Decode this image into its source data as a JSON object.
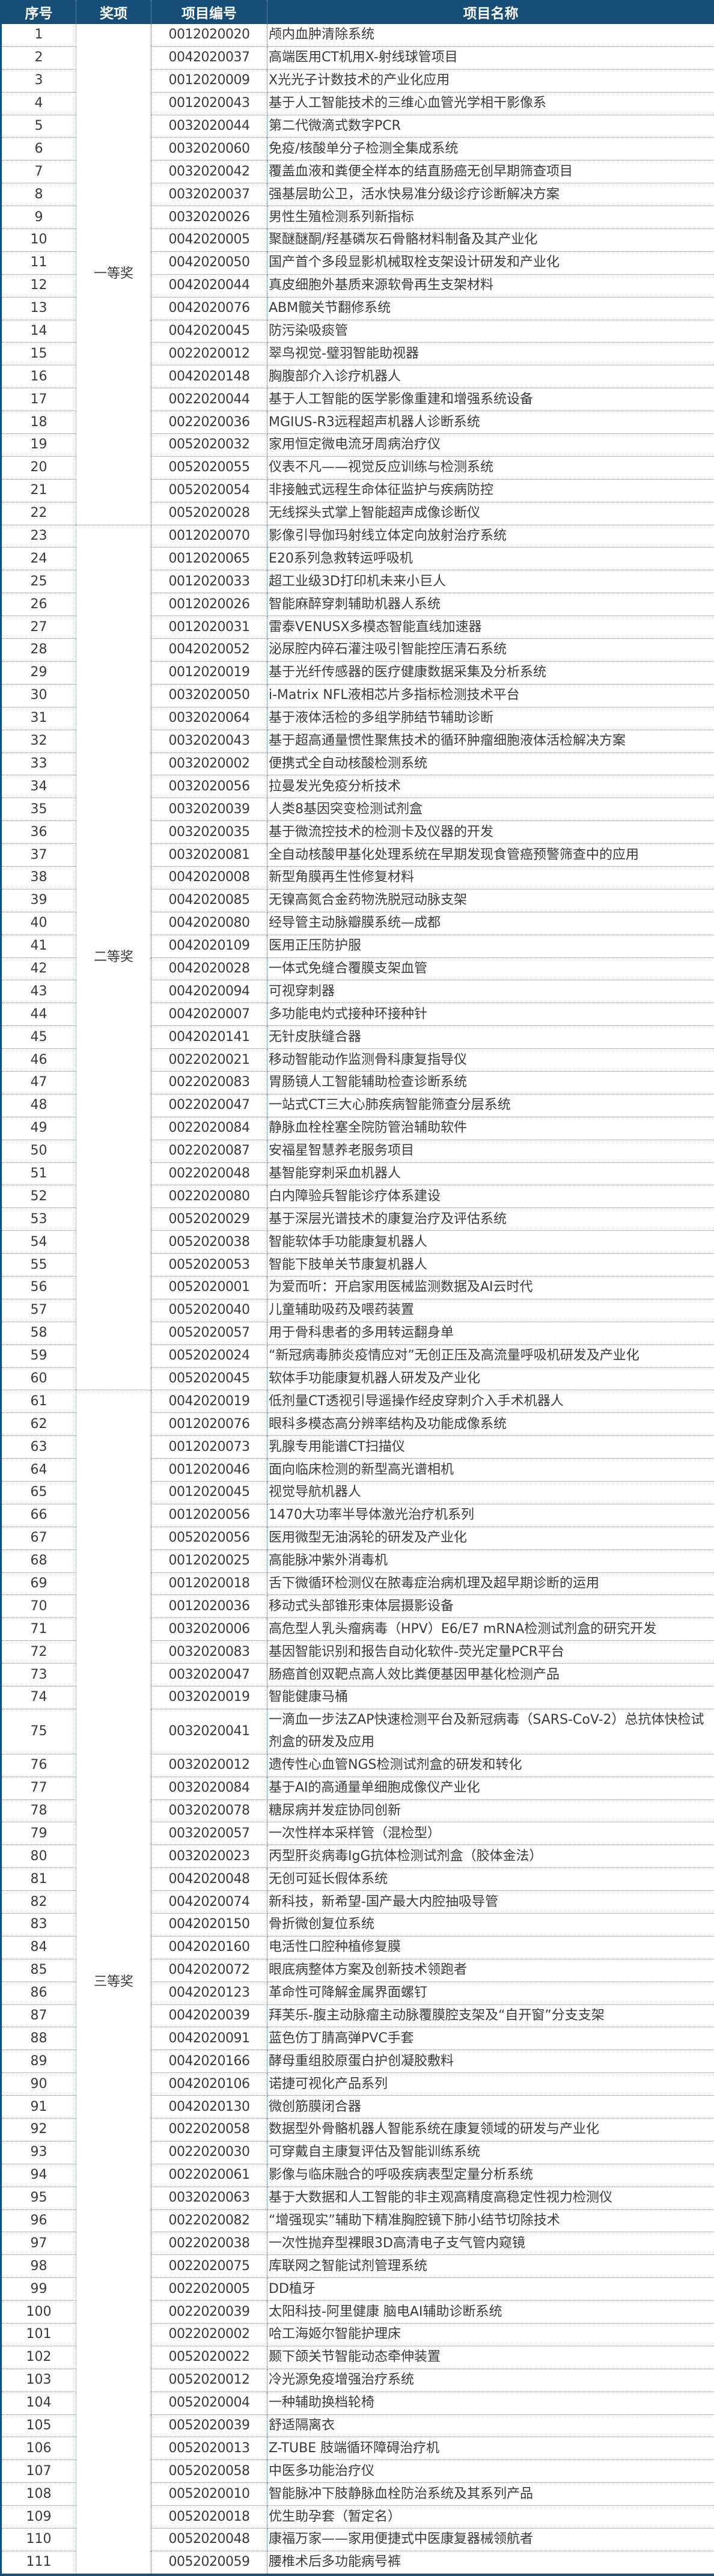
{
  "header": {
    "seq": "序号",
    "award": "奖项",
    "code": "项目编号",
    "name": "项目名称"
  },
  "colors": {
    "header_bg": "#174e78",
    "header_text": "#ffffff"
  },
  "awards": [
    {
      "label": "一等奖",
      "from": 1,
      "to": 22
    },
    {
      "label": "二等奖",
      "from": 23,
      "to": 60
    },
    {
      "label": "三等奖",
      "from": 61,
      "to": 111
    }
  ],
  "rows": [
    [
      "1",
      "0012020020",
      "颅内血肿清除系统"
    ],
    [
      "2",
      "0042020037",
      "高端医用CT机用X-射线球管项目"
    ],
    [
      "3",
      "0012020009",
      "X光光子计数技术的产业化应用"
    ],
    [
      "4",
      "0012020043",
      "基于人工智能技术的三维心血管光学相干影像系"
    ],
    [
      "5",
      "0032020044",
      "第二代微滴式数字PCR"
    ],
    [
      "6",
      "0032020060",
      "免疫/核酸单分子检测全集成系统"
    ],
    [
      "7",
      "0032020042",
      "覆盖血液和粪便全样本的结直肠癌无创早期筛查项目"
    ],
    [
      "8",
      "0032020037",
      "强基层助公卫，活水快易准分级诊疗诊断解决方案"
    ],
    [
      "9",
      "0032020026",
      "男性生殖检测系列新指标"
    ],
    [
      "10",
      "0042020005",
      "聚醚醚酮/羟基磷灰石骨骼材料制备及其产业化"
    ],
    [
      "11",
      "0042020050",
      "国产首个多段显影机械取栓支架设计研发和产业化"
    ],
    [
      "12",
      "0042020044",
      "真皮细胞外基质来源软骨再生支架材料"
    ],
    [
      "13",
      "0042020076",
      "ABM髋关节翻修系统"
    ],
    [
      "14",
      "0042020045",
      "防污染吸痰管"
    ],
    [
      "15",
      "0022020012",
      "翠鸟视觉-璧羽智能助视器"
    ],
    [
      "16",
      "0042020148",
      "胸腹部介入诊疗机器人"
    ],
    [
      "17",
      "0022020044",
      "基于人工智能的医学影像重建和增强系统设备"
    ],
    [
      "18",
      "0022020036",
      "MGIUS-R3远程超声机器人诊断系统"
    ],
    [
      "19",
      "0052020032",
      "家用恒定微电流牙周病治疗仪"
    ],
    [
      "20",
      "0052020055",
      "仪表不凡——视觉反应训练与检测系统"
    ],
    [
      "21",
      "0052020054",
      "非接触式远程生命体征监护与疾病防控"
    ],
    [
      "22",
      "0052020028",
      "无线探头式掌上智能超声成像诊断仪"
    ],
    [
      "23",
      "0012020070",
      "影像引导伽玛射线立体定向放射治疗系统"
    ],
    [
      "24",
      "0012020065",
      "E20系列急救转运呼吸机"
    ],
    [
      "25",
      "0012020033",
      "超工业级3D打印机未来小巨人"
    ],
    [
      "26",
      "0012020026",
      "智能麻醉穿刺辅助机器人系统"
    ],
    [
      "27",
      "0012020031",
      "雷泰VENUSX多模态智能直线加速器"
    ],
    [
      "28",
      "0042020052",
      "泌尿腔内碎石灌注吸引智能控压清石系统"
    ],
    [
      "29",
      "0012020019",
      "基于光纤传感器的医疗健康数据采集及分析系统"
    ],
    [
      "30",
      "0032020050",
      "i-Matrix NFL液相芯片多指标检测技术平台"
    ],
    [
      "31",
      "0032020064",
      "基于液体活检的多组学肺结节辅助诊断"
    ],
    [
      "32",
      "0032020043",
      "基于超高通量惯性聚焦技术的循环肿瘤细胞液体活检解决方案"
    ],
    [
      "33",
      "0032020002",
      "便携式全自动核酸检测系统"
    ],
    [
      "34",
      "0032020056",
      "拉曼发光免疫分析技术"
    ],
    [
      "35",
      "0032020039",
      "人类8基因突变检测试剂盒"
    ],
    [
      "36",
      "0032020035",
      "基于微流控技术的检测卡及仪器的开发"
    ],
    [
      "37",
      "0032020081",
      "全自动核酸甲基化处理系统在早期发现食管癌预警筛查中的应用"
    ],
    [
      "38",
      "0042020008",
      "新型角膜再生性修复材料"
    ],
    [
      "39",
      "0042020085",
      "无镍高氮合金药物洗脱冠动脉支架"
    ],
    [
      "40",
      "0042020080",
      "经导管主动脉瓣膜系统—成都"
    ],
    [
      "41",
      "0042020109",
      "医用正压防护服"
    ],
    [
      "42",
      "0042020028",
      "一体式免缝合覆膜支架血管"
    ],
    [
      "43",
      "0042020094",
      "可视穿刺器"
    ],
    [
      "44",
      "0042020007",
      "多功能电灼式接种环接种针"
    ],
    [
      "45",
      "0042020141",
      "无针皮肤缝合器"
    ],
    [
      "46",
      "0022020021",
      "移动智能动作监测骨科康复指导仪"
    ],
    [
      "47",
      "0022020083",
      "胃肠镜人工智能辅助检查诊断系统"
    ],
    [
      "48",
      "0022020047",
      "一站式CT三大心肺疾病智能筛查分层系统"
    ],
    [
      "49",
      "0022020084",
      "静脉血栓栓塞全院防管治辅助软件"
    ],
    [
      "50",
      "0022020087",
      "安福星智慧养老服务项目"
    ],
    [
      "51",
      "0022020048",
      "基智能穿刺采血机器人"
    ],
    [
      "52",
      "0022020080",
      "白内障验兵智能诊疗体系建设"
    ],
    [
      "53",
      "0052020029",
      "基于深层光谱技术的康复治疗及评估系统"
    ],
    [
      "54",
      "0052020038",
      "智能软体手功能康复机器人"
    ],
    [
      "55",
      "0052020053",
      "智能下肢单关节康复机器人"
    ],
    [
      "56",
      "0052020001",
      "为爱而听：开启家用医械监测数据及AI云时代"
    ],
    [
      "57",
      "0052020040",
      "儿童辅助吸药及喂药装置"
    ],
    [
      "58",
      "0052020057",
      "用于骨科患者的多用转运翻身单"
    ],
    [
      "59",
      "0052020024",
      "“新冠病毒肺炎疫情应对”无创正压及高流量呼吸机研发及产业化"
    ],
    [
      "60",
      "0052020045",
      "软体手功能康复机器人研发及产业化"
    ],
    [
      "61",
      "0042020019",
      "低剂量CT透视引导遥操作经皮穿刺介入手术机器人"
    ],
    [
      "62",
      "0012020076",
      "眼科多模态高分辨率结构及功能成像系统"
    ],
    [
      "63",
      "0012020073",
      "乳腺专用能谱CT扫描仪"
    ],
    [
      "64",
      "0012020046",
      "面向临床检测的新型高光谱相机"
    ],
    [
      "65",
      "0012020045",
      "视觉导航机器人"
    ],
    [
      "66",
      "0012020056",
      "1470大功率半导体激光治疗机系列"
    ],
    [
      "67",
      "0052020056",
      "医用微型无油涡轮的研发及产业化"
    ],
    [
      "68",
      "0012020025",
      "高能脉冲紫外消毒机"
    ],
    [
      "69",
      "0012020018",
      "舌下微循环检测仪在脓毒症治病机理及超早期诊断的运用"
    ],
    [
      "70",
      "0012020036",
      "移动式头部锥形束体层摄影设备"
    ],
    [
      "71",
      "0032020006",
      "高危型人乳头瘤病毒（HPV）E6/E7 mRNA检测试剂盒的研究开发"
    ],
    [
      "72",
      "0032020083",
      "基因智能识别和报告自动化软件-荧光定量PCR平台"
    ],
    [
      "73",
      "0032020047",
      "肠癌首创双靶点高人效比粪便基因甲基化检测产品"
    ],
    [
      "74",
      "0032020019",
      "智能健康马桶"
    ],
    [
      "75",
      "0032020041",
      "一滴血一步法ZAP快速检测平台及新冠病毒（SARS-CoV-2）总抗体快检试剂盒的研发及应用"
    ],
    [
      "76",
      "0032020012",
      "遗传性心血管NGS检测试剂盒的研发和转化"
    ],
    [
      "77",
      "0032020084",
      "基于AI的高通量单细胞成像仪产业化"
    ],
    [
      "78",
      "0032020078",
      "糖尿病并发症协同创新"
    ],
    [
      "79",
      "0032020057",
      "一次性样本采样管（混检型）"
    ],
    [
      "80",
      "0032020023",
      "丙型肝炎病毒IgG抗体检测试剂盒（胶体金法）"
    ],
    [
      "81",
      "0042020048",
      "无创可延长假体系统"
    ],
    [
      "82",
      "0042020074",
      "新科技，新希望-国产最大内腔抽吸导管"
    ],
    [
      "83",
      "0042020150",
      "骨折微创复位系统"
    ],
    [
      "84",
      "0042020160",
      "电活性口腔种植修复膜"
    ],
    [
      "85",
      "0042020072",
      "眼底病整体方案及创新技术领跑者"
    ],
    [
      "86",
      "0042020123",
      "革命性可降解金属界面螺钉"
    ],
    [
      "87",
      "0042020039",
      "拜芙乐-腹主动脉瘤主动脉覆膜腔支架及“自开窗”分支支架"
    ],
    [
      "88",
      "0042020091",
      "蓝色仿丁腈高弹PVC手套"
    ],
    [
      "89",
      "0042020166",
      "酵母重组胶原蛋白护创凝胶敷料"
    ],
    [
      "90",
      "0042020106",
      "诺捷可视化产品系列"
    ],
    [
      "91",
      "0042020130",
      "微创筋膜闭合器"
    ],
    [
      "92",
      "0022020058",
      "数据型外骨骼机器人智能系统在康复领域的研发与产业化"
    ],
    [
      "93",
      "0022020030",
      "可穿戴自主康复评估及智能训练系统"
    ],
    [
      "94",
      "0022020061",
      "影像与临床融合的呼吸疾病表型定量分析系统"
    ],
    [
      "95",
      "0032020063",
      "基于大数据和人工智能的非主观高精度高稳定性视力检测仪"
    ],
    [
      "96",
      "0022020082",
      "“增强现实”辅助下精准胸腔镜下肺小结节切除技术"
    ],
    [
      "97",
      "0022020038",
      "一次性抛弃型裸眼3D高清电子支气管内窥镜"
    ],
    [
      "98",
      "0022020075",
      "库联网之智能试剂管理系统"
    ],
    [
      "99",
      "0022020005",
      "DD植牙"
    ],
    [
      "100",
      "0022020039",
      "太阳科技-阿里健康 脑电AI辅助诊断系统"
    ],
    [
      "101",
      "0022020002",
      "哈工海姬尔智能护理床"
    ],
    [
      "102",
      "0052020022",
      "颞下颌关节智能动态牵伸装置"
    ],
    [
      "103",
      "0052020012",
      "冷光源免疫增强治疗系统"
    ],
    [
      "104",
      "0052020004",
      "一种辅助换档轮椅"
    ],
    [
      "105",
      "0052020039",
      "舒适隔离衣"
    ],
    [
      "106",
      "0052020013",
      "Z-TUBE 肢端循环障碍治疗机"
    ],
    [
      "107",
      "0052020058",
      "中医多功能治疗仪"
    ],
    [
      "108",
      "0052020010",
      "智能脉冲下肢静脉血栓防治系统及其系列产品"
    ],
    [
      "109",
      "0052020018",
      "优生助孕套（暂定名）"
    ],
    [
      "110",
      "0052020048",
      "康福万家——家用便捷式中医康复器械领航者"
    ],
    [
      "111",
      "0052020059",
      "腰椎术后多功能病号裤"
    ]
  ]
}
